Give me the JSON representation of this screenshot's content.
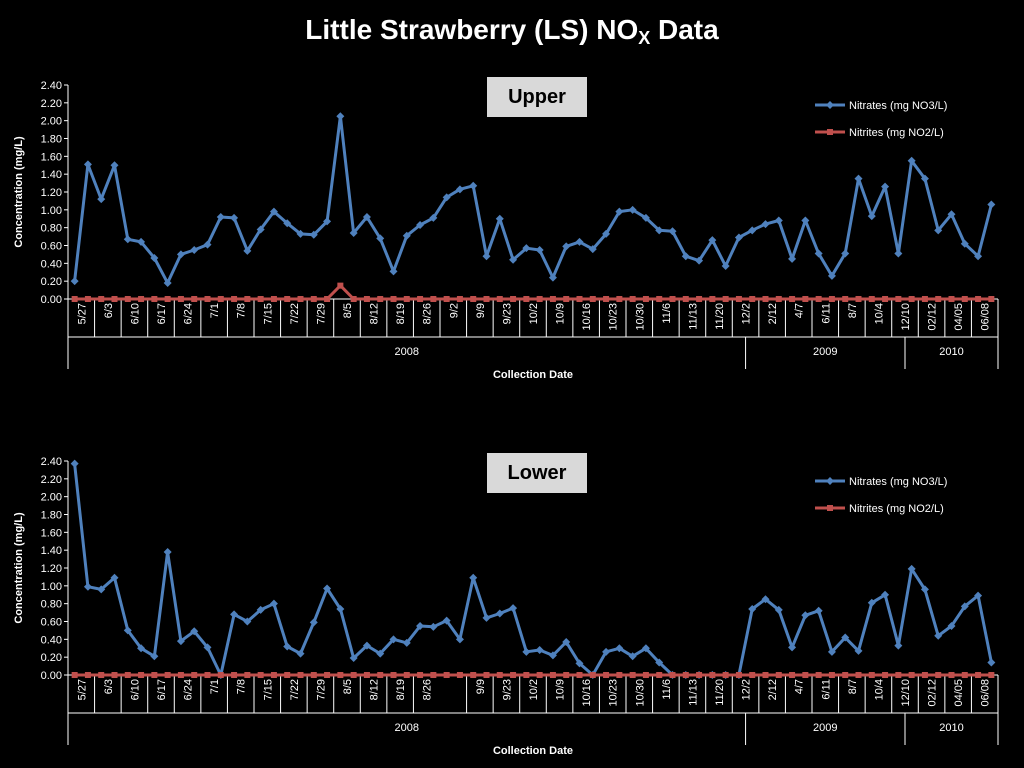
{
  "title": {
    "main": "Little Strawberry (LS) NO",
    "sub": "X",
    "tail": " Data"
  },
  "colors": {
    "nitrates": "#4f81bd",
    "nitrites": "#c0504d",
    "background": "#000000",
    "axis": "#ffffff"
  },
  "chart_data": [
    {
      "type": "line",
      "panel_label": "Upper",
      "xlabel": "Collection Date",
      "ylabel": "Concentration (mg/L)",
      "ylim": [
        0,
        2.4
      ],
      "yticks": [
        "0.00",
        "0.20",
        "0.40",
        "0.60",
        "0.80",
        "1.00",
        "1.20",
        "1.40",
        "1.60",
        "1.80",
        "2.00",
        "2.20",
        "2.40"
      ],
      "tick_labels": [
        {
          "label": "5/27",
          "i": 0
        },
        {
          "label": "6/3",
          "i": 2
        },
        {
          "label": "6/10",
          "i": 4
        },
        {
          "label": "6/17",
          "i": 6
        },
        {
          "label": "6/24",
          "i": 8
        },
        {
          "label": "7/1",
          "i": 10
        },
        {
          "label": "7/8",
          "i": 12
        },
        {
          "label": "7/15",
          "i": 14
        },
        {
          "label": "7/22",
          "i": 16
        },
        {
          "label": "7/29",
          "i": 18
        },
        {
          "label": "8/5",
          "i": 20
        },
        {
          "label": "8/12",
          "i": 22
        },
        {
          "label": "8/19",
          "i": 24
        },
        {
          "label": "8/26",
          "i": 26
        },
        {
          "label": "9/2",
          "i": 28
        },
        {
          "label": "9/9",
          "i": 30
        },
        {
          "label": "9/23",
          "i": 32
        },
        {
          "label": "10/2",
          "i": 34
        },
        {
          "label": "10/9",
          "i": 36
        },
        {
          "label": "10/16",
          "i": 38
        },
        {
          "label": "10/23",
          "i": 40
        },
        {
          "label": "10/30",
          "i": 42
        },
        {
          "label": "11/6",
          "i": 44
        },
        {
          "label": "11/13",
          "i": 46
        },
        {
          "label": "11/20",
          "i": 48
        },
        {
          "label": "12/2",
          "i": 50
        },
        {
          "label": "2/12",
          "i": 52
        },
        {
          "label": "4/7",
          "i": 54
        },
        {
          "label": "6/11",
          "i": 56
        },
        {
          "label": "8/7",
          "i": 58
        },
        {
          "label": "10/4",
          "i": 60
        },
        {
          "label": "12/10",
          "i": 62
        },
        {
          "label": "02/12",
          "i": 64
        },
        {
          "label": "04/05",
          "i": 66
        },
        {
          "label": "06/08",
          "i": 68
        }
      ],
      "year_groups": [
        {
          "label": "2008",
          "start": 0,
          "end": 50
        },
        {
          "label": "2009",
          "start": 51,
          "end": 62
        },
        {
          "label": "2010",
          "start": 63,
          "end": 69
        }
      ],
      "legend_position": "top-right",
      "series": [
        {
          "name": "Nitrates (mg NO3/L)",
          "marker": "diamond",
          "values": [
            0.2,
            1.51,
            1.12,
            1.5,
            0.67,
            0.64,
            0.46,
            0.18,
            0.5,
            0.55,
            0.61,
            0.92,
            0.91,
            0.54,
            0.78,
            0.98,
            0.85,
            0.73,
            0.72,
            0.87,
            2.05,
            0.74,
            0.92,
            0.68,
            0.31,
            0.71,
            0.83,
            0.91,
            1.14,
            1.23,
            1.27,
            0.48,
            0.9,
            0.44,
            0.57,
            0.55,
            0.24,
            0.59,
            0.64,
            0.56,
            0.73,
            0.98,
            1.0,
            0.91,
            0.77,
            0.76,
            0.48,
            0.43,
            0.66,
            0.37,
            0.69,
            0.77,
            0.84,
            0.88,
            0.45,
            0.88,
            0.51,
            0.26,
            0.51,
            1.35,
            0.93,
            1.26,
            0.51,
            1.55,
            1.35,
            0.77,
            0.95,
            0.62,
            0.48,
            1.06
          ]
        },
        {
          "name": "Nitrites (mg NO2/L)",
          "marker": "square",
          "values": [
            0,
            0,
            0,
            0,
            0,
            0,
            0,
            0,
            0,
            0,
            0,
            0,
            0,
            0,
            0,
            0,
            0,
            0,
            0,
            0,
            0.15,
            0,
            0,
            0,
            0,
            0,
            0,
            0,
            0,
            0,
            0,
            0,
            0,
            0,
            0,
            0,
            0,
            0,
            0,
            0,
            0,
            0,
            0,
            0,
            0,
            0,
            0,
            0,
            0,
            0,
            0,
            0,
            0,
            0,
            0,
            0,
            0,
            0,
            0,
            0,
            0,
            0,
            0,
            0,
            0,
            0,
            0,
            0,
            0,
            0
          ]
        }
      ]
    },
    {
      "type": "line",
      "panel_label": "Lower",
      "xlabel": "Collection Date",
      "ylabel": "Concentration (mg/L)",
      "ylim": [
        0,
        2.4
      ],
      "yticks": [
        "0.00",
        "0.20",
        "0.40",
        "0.60",
        "0.80",
        "1.00",
        "1.20",
        "1.40",
        "1.60",
        "1.80",
        "2.00",
        "2.20",
        "2.40"
      ],
      "tick_labels": [
        {
          "label": "5/27",
          "i": 0
        },
        {
          "label": "6/3",
          "i": 2
        },
        {
          "label": "6/10",
          "i": 4
        },
        {
          "label": "6/17",
          "i": 6
        },
        {
          "label": "6/24",
          "i": 8
        },
        {
          "label": "7/1",
          "i": 10
        },
        {
          "label": "7/8",
          "i": 12
        },
        {
          "label": "7/15",
          "i": 14
        },
        {
          "label": "7/22",
          "i": 16
        },
        {
          "label": "7/29",
          "i": 18
        },
        {
          "label": "8/5",
          "i": 20
        },
        {
          "label": "8/12",
          "i": 22
        },
        {
          "label": "8/19",
          "i": 24
        },
        {
          "label": "8/26",
          "i": 26
        },
        {
          "label": "9/9",
          "i": 30
        },
        {
          "label": "9/23",
          "i": 32
        },
        {
          "label": "10/2",
          "i": 34
        },
        {
          "label": "10/9",
          "i": 36
        },
        {
          "label": "10/16",
          "i": 38
        },
        {
          "label": "10/23",
          "i": 40
        },
        {
          "label": "10/30",
          "i": 42
        },
        {
          "label": "11/6",
          "i": 44
        },
        {
          "label": "11/13",
          "i": 46
        },
        {
          "label": "11/20",
          "i": 48
        },
        {
          "label": "12/2",
          "i": 50
        },
        {
          "label": "2/12",
          "i": 52
        },
        {
          "label": "4/7",
          "i": 54
        },
        {
          "label": "6/11",
          "i": 56
        },
        {
          "label": "8/7",
          "i": 58
        },
        {
          "label": "10/4",
          "i": 60
        },
        {
          "label": "12/10",
          "i": 62
        },
        {
          "label": "02/12",
          "i": 64
        },
        {
          "label": "04/05",
          "i": 66
        },
        {
          "label": "06/08",
          "i": 68
        }
      ],
      "year_groups": [
        {
          "label": "2008",
          "start": 0,
          "end": 50
        },
        {
          "label": "2009",
          "start": 51,
          "end": 62
        },
        {
          "label": "2010",
          "start": 63,
          "end": 69
        }
      ],
      "legend_position": "top-right",
      "series": [
        {
          "name": "Nitrates (mg NO3/L)",
          "marker": "diamond",
          "values": [
            2.37,
            0.99,
            0.96,
            1.09,
            0.5,
            0.3,
            0.21,
            1.38,
            0.38,
            0.49,
            0.31,
            0,
            0.68,
            0.6,
            0.73,
            0.8,
            0.32,
            0.24,
            0.59,
            0.97,
            0.74,
            0.19,
            0.33,
            0.24,
            0.4,
            0.36,
            0.55,
            0.54,
            0.61,
            0.4,
            1.09,
            0.64,
            0.69,
            0.75,
            0.26,
            0.28,
            0.22,
            0.37,
            0.13,
            0,
            0.26,
            0.3,
            0.21,
            0.3,
            0.14,
            0,
            0,
            0,
            0,
            0,
            0,
            0.74,
            0.85,
            0.73,
            0.31,
            0.67,
            0.72,
            0.26,
            0.42,
            0.27,
            0.81,
            0.9,
            0.33,
            1.19,
            0.96,
            0.44,
            0.55,
            0.77,
            0.89,
            0.14
          ]
        },
        {
          "name": "Nitrites (mg NO2/L)",
          "marker": "square",
          "values": [
            0,
            0,
            0,
            0,
            0,
            0,
            0,
            0,
            0,
            0,
            0,
            0,
            0,
            0,
            0,
            0,
            0,
            0,
            0,
            0,
            0,
            0,
            0,
            0,
            0,
            0,
            0,
            0,
            0,
            0,
            0,
            0,
            0,
            0,
            0,
            0,
            0,
            0,
            0,
            0,
            0,
            0,
            0,
            0,
            0,
            0,
            0,
            0,
            0,
            0,
            0,
            0,
            0,
            0,
            0,
            0,
            0,
            0,
            0,
            0,
            0,
            0,
            0,
            0,
            0,
            0,
            0,
            0,
            0,
            0
          ]
        }
      ]
    }
  ]
}
